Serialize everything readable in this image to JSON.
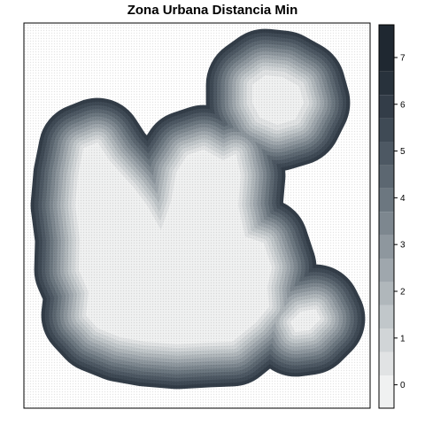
{
  "title": "Zona Urbana Distancia Min",
  "legend": {
    "ticks": [
      "0",
      "1",
      "2",
      "3",
      "4",
      "5",
      "6",
      "7"
    ],
    "range": [
      -0.5,
      7.7
    ],
    "bands": [
      {
        "from": -0.5,
        "to": 0.2,
        "color": "#f0f1f1"
      },
      {
        "from": 0.2,
        "to": 0.7,
        "color": "#e1e3e4"
      },
      {
        "from": 0.7,
        "to": 1.2,
        "color": "#d1d5d7"
      },
      {
        "from": 1.2,
        "to": 1.7,
        "color": "#c1c7ca"
      },
      {
        "from": 1.7,
        "to": 2.2,
        "color": "#b0b7bb"
      },
      {
        "from": 2.2,
        "to": 2.7,
        "color": "#9fa7ad"
      },
      {
        "from": 2.7,
        "to": 3.2,
        "color": "#8e979e"
      },
      {
        "from": 3.2,
        "to": 3.7,
        "color": "#7d878f"
      },
      {
        "from": 3.7,
        "to": 4.2,
        "color": "#6c7780"
      },
      {
        "from": 4.2,
        "to": 4.7,
        "color": "#5c6771"
      },
      {
        "from": 4.7,
        "to": 5.2,
        "color": "#4d5863"
      },
      {
        "from": 5.2,
        "to": 5.7,
        "color": "#3f4a55"
      },
      {
        "from": 5.7,
        "to": 6.2,
        "color": "#333d48"
      },
      {
        "from": 6.2,
        "to": 6.7,
        "color": "#28323c"
      },
      {
        "from": 6.7,
        "to": 7.7,
        "color": "#1f2831"
      }
    ]
  },
  "map": {
    "band_colors": [
      "#f0f1f1",
      "#e1e3e4",
      "#d1d5d7",
      "#c1c7ca",
      "#b0b7bb",
      "#9fa7ad",
      "#8e979e",
      "#7d878f",
      "#6c7780",
      "#5c6771",
      "#4d5863",
      "#3f4a55",
      "#333d48"
    ]
  }
}
